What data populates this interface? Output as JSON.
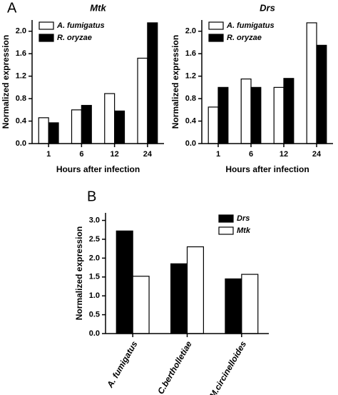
{
  "chart_data": [
    {
      "type": "bar",
      "panel_label": "A",
      "title": "Mtk",
      "x_label": "Hours after infection",
      "y_label": "Normalized expression",
      "categories": [
        "1",
        "6",
        "12",
        "24"
      ],
      "series": [
        {
          "name": "A. fumigatus",
          "color": "#ffffff",
          "values": [
            0.46,
            0.6,
            0.89,
            1.52
          ]
        },
        {
          "name": "R. oryzae",
          "color": "#000000",
          "values": [
            0.37,
            0.68,
            0.58,
            2.15
          ]
        }
      ],
      "ylim": [
        0,
        2.2
      ],
      "yticks": [
        {
          "value": 0,
          "label": "0.0"
        },
        0.4,
        0.8,
        1.2,
        1.6,
        {
          "value": 2,
          "label": "2.0"
        }
      ],
      "legend": "upper left"
    },
    {
      "type": "bar",
      "title": "Drs",
      "x_label": "Hours after infection",
      "y_label": "Normalized expression",
      "categories": [
        "1",
        "6",
        "12",
        "24"
      ],
      "series": [
        {
          "name": "A. fumigatus",
          "color": "#ffffff",
          "values": [
            0.65,
            1.15,
            1.0,
            2.15
          ]
        },
        {
          "name": "R. oryzae",
          "color": "#000000",
          "values": [
            1.0,
            1.0,
            1.16,
            1.75
          ]
        }
      ],
      "ylim": [
        0,
        2.2
      ],
      "yticks": [
        {
          "value": 0,
          "label": "0.0"
        },
        0.4,
        0.8,
        1.2,
        1.6,
        {
          "value": 2,
          "label": "2.0"
        }
      ],
      "legend": "upper left"
    },
    {
      "type": "bar",
      "panel_label": "B",
      "y_label": "Normalized expression",
      "categories": [
        "A. fumigatus",
        "C.bertholletiae",
        "M.circinelloides"
      ],
      "series": [
        {
          "name": "Drs",
          "color": "#000000",
          "values": [
            2.72,
            1.85,
            1.45
          ]
        },
        {
          "name": "Mtk",
          "color": "#ffffff",
          "values": [
            1.52,
            2.3,
            1.57
          ]
        }
      ],
      "ylim": [
        0,
        3.2
      ],
      "yticks": [
        {
          "value": 0,
          "label": "0.0"
        },
        0.5,
        {
          "value": 1,
          "label": "1.0"
        },
        1.5,
        {
          "value": 2,
          "label": "2.0"
        },
        2.5,
        {
          "value": 3,
          "label": "3.0"
        }
      ],
      "legend": "upper right"
    }
  ]
}
